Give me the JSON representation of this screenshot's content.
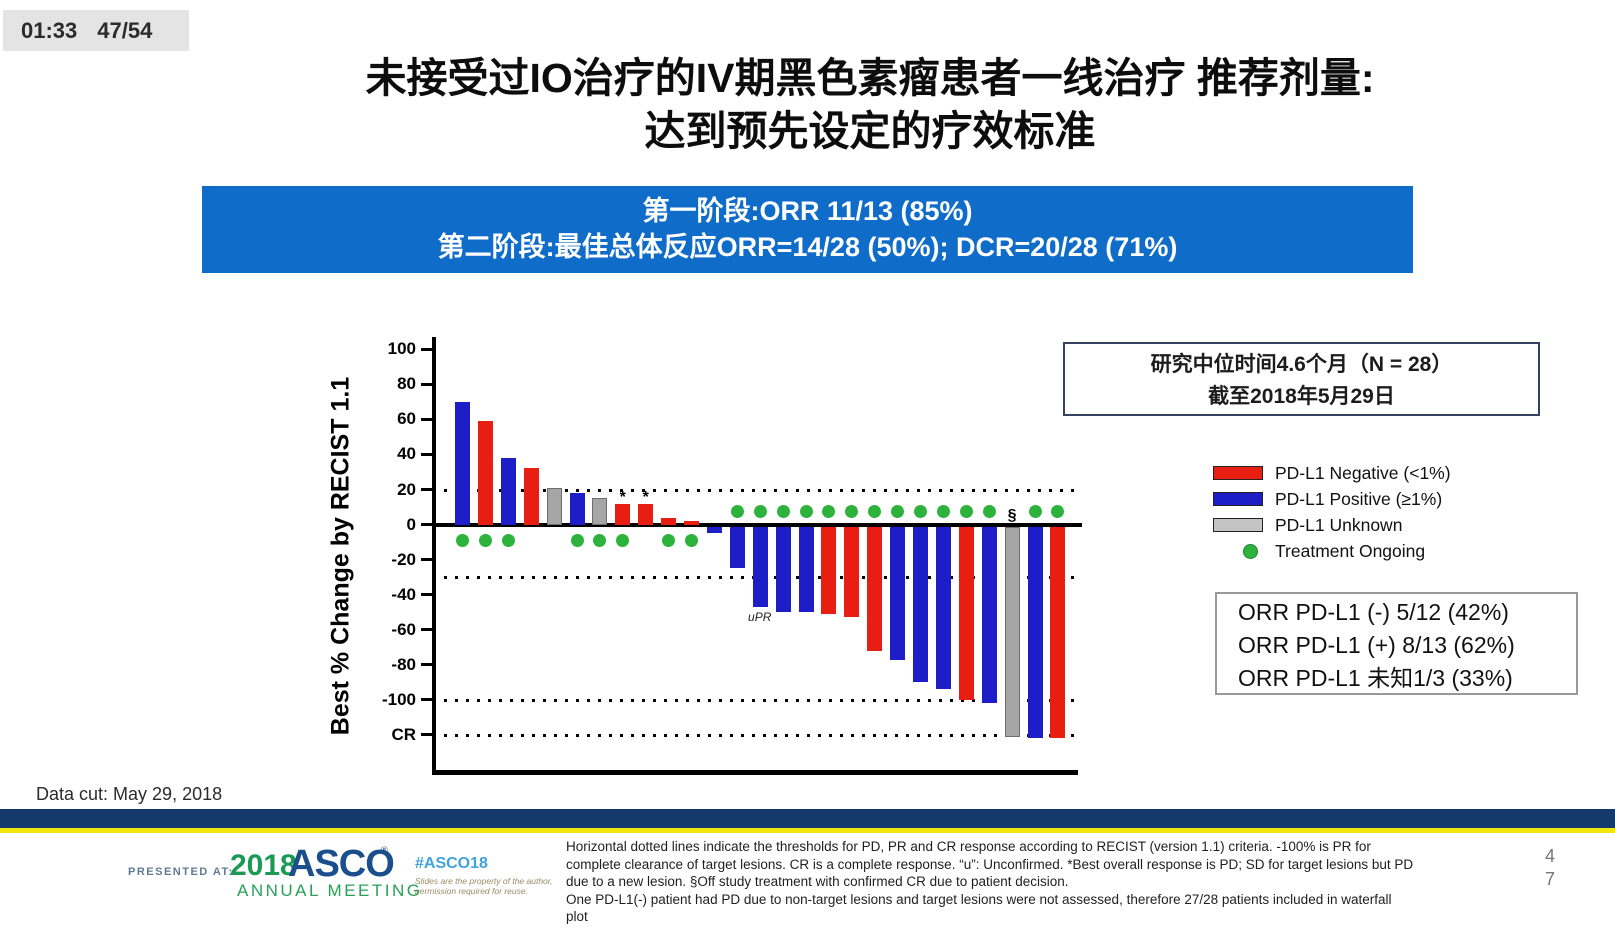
{
  "player": {
    "time": "01:33",
    "slide_counter": "47/54"
  },
  "title": {
    "line1": "未接受过IO治疗的IV期黑色素瘤患者一线治疗 推荐剂量:",
    "line2": "达到预先设定的疗效标准"
  },
  "banner": {
    "line1": "第一阶段:ORR 11/13 (85%)",
    "line2": "第二阶段:最佳总体反应ORR=14/28 (50%); DCR=20/28 (71%)",
    "bg_color": "#0f6cc9"
  },
  "info_box": {
    "line1": "研究中位时间4.6个月（N = 28）",
    "line2": "截至2018年5月29日"
  },
  "legend": {
    "items": [
      {
        "label": "PD-L1 Negative (<1%)",
        "color": "#e81e13",
        "shape": "rect"
      },
      {
        "label": "PD-L1 Positive (≥1%)",
        "color": "#1e1ec8",
        "shape": "rect"
      },
      {
        "label": "PD-L1 Unknown",
        "color": "#c4c4c4",
        "shape": "rect"
      },
      {
        "label": "Treatment Ongoing",
        "color": "#2db33c",
        "shape": "circle"
      }
    ]
  },
  "orr_box": {
    "lines": [
      "ORR PD-L1 (-) 5/12 (42%)",
      "ORR PD-L1 (+) 8/13 (62%)",
      "ORR PD-L1 未知1/3 (33%)"
    ]
  },
  "data_cut": "Data cut: May 29, 2018",
  "footer": {
    "presented_at": "PRESENTED AT:",
    "logo_year": "2018",
    "logo_name": "ASCO",
    "logo_reg": "®",
    "logo_sub": "ANNUAL MEETING",
    "hashtag": "#ASCO18",
    "slides_note_lines": [
      "Slides are the property of the author,",
      "permission required for reuse."
    ],
    "footnote_lines": [
      "Horizontal dotted lines indicate the thresholds for PD, PR and CR response according to RECIST (version 1.1) criteria. -100% is PR for",
      "complete clearance of target lesions. CR is a complete response. “u”: Unconfirmed. *Best overall response is PD; SD for target lesions but PD",
      "due to a new lesion. §Off study treatment with confirmed CR due to patient decision.",
      "One PD-L1(-) patient had PD due to non-target lesions and target lesions were not assessed, therefore 27/28 patients included in waterfall",
      "plot"
    ],
    "page_digits": [
      "4",
      "7"
    ]
  },
  "chart_data": {
    "type": "bar",
    "subtype": "waterfall",
    "ylabel": "Best % Change by RECIST 1.1",
    "ylim": [
      -140,
      107
    ],
    "grid": false,
    "yticks": [
      {
        "v": 100,
        "label": "100"
      },
      {
        "v": 80,
        "label": "80"
      },
      {
        "v": 60,
        "label": "60"
      },
      {
        "v": 40,
        "label": "40"
      },
      {
        "v": 20,
        "label": "20"
      },
      {
        "v": 0,
        "label": "0"
      },
      {
        "v": -20,
        "label": "-20"
      },
      {
        "v": -40,
        "label": "-40"
      },
      {
        "v": -60,
        "label": "-60"
      },
      {
        "v": -80,
        "label": "-80"
      },
      {
        "v": -100,
        "label": "-100"
      },
      {
        "v": -120,
        "label": "CR"
      }
    ],
    "threshold_lines": [
      20,
      -30,
      -100,
      -120
    ],
    "colors": {
      "negative": "#e81e13",
      "positive": "#1e1ec8",
      "unknown": "#a6a6a6",
      "ongoing": "#2db33c"
    },
    "bars": [
      {
        "value": 70,
        "group": "positive",
        "ongoing": true
      },
      {
        "value": 59,
        "group": "negative",
        "ongoing": true
      },
      {
        "value": 38,
        "group": "positive",
        "ongoing": true
      },
      {
        "value": 32,
        "group": "negative",
        "ongoing": false
      },
      {
        "value": 21,
        "group": "unknown",
        "ongoing": false
      },
      {
        "value": 18,
        "group": "positive",
        "ongoing": true
      },
      {
        "value": 15,
        "group": "unknown",
        "ongoing": true
      },
      {
        "value": 12,
        "group": "negative",
        "ongoing": true,
        "mark": "*"
      },
      {
        "value": 12,
        "group": "negative",
        "ongoing": false,
        "mark": "*"
      },
      {
        "value": 4,
        "group": "negative",
        "ongoing": true
      },
      {
        "value": 2,
        "group": "negative",
        "ongoing": true
      },
      {
        "value": -5,
        "group": "positive",
        "ongoing": false
      },
      {
        "value": -25,
        "group": "positive",
        "ongoing": true
      },
      {
        "value": -47,
        "group": "positive",
        "ongoing": true,
        "label": "uPR"
      },
      {
        "value": -50,
        "group": "positive",
        "ongoing": true
      },
      {
        "value": -50,
        "group": "positive",
        "ongoing": true
      },
      {
        "value": -51,
        "group": "negative",
        "ongoing": true
      },
      {
        "value": -53,
        "group": "negative",
        "ongoing": true
      },
      {
        "value": -72,
        "group": "negative",
        "ongoing": true
      },
      {
        "value": -77,
        "group": "positive",
        "ongoing": true
      },
      {
        "value": -90,
        "group": "positive",
        "ongoing": true
      },
      {
        "value": -94,
        "group": "positive",
        "ongoing": true
      },
      {
        "value": -100,
        "group": "negative",
        "ongoing": true
      },
      {
        "value": -102,
        "group": "positive",
        "ongoing": true
      },
      {
        "value": -121,
        "group": "unknown",
        "ongoing": false,
        "mark": "§"
      },
      {
        "value": -122,
        "group": "positive",
        "ongoing": true
      },
      {
        "value": -122,
        "group": "negative",
        "ongoing": true
      }
    ]
  }
}
